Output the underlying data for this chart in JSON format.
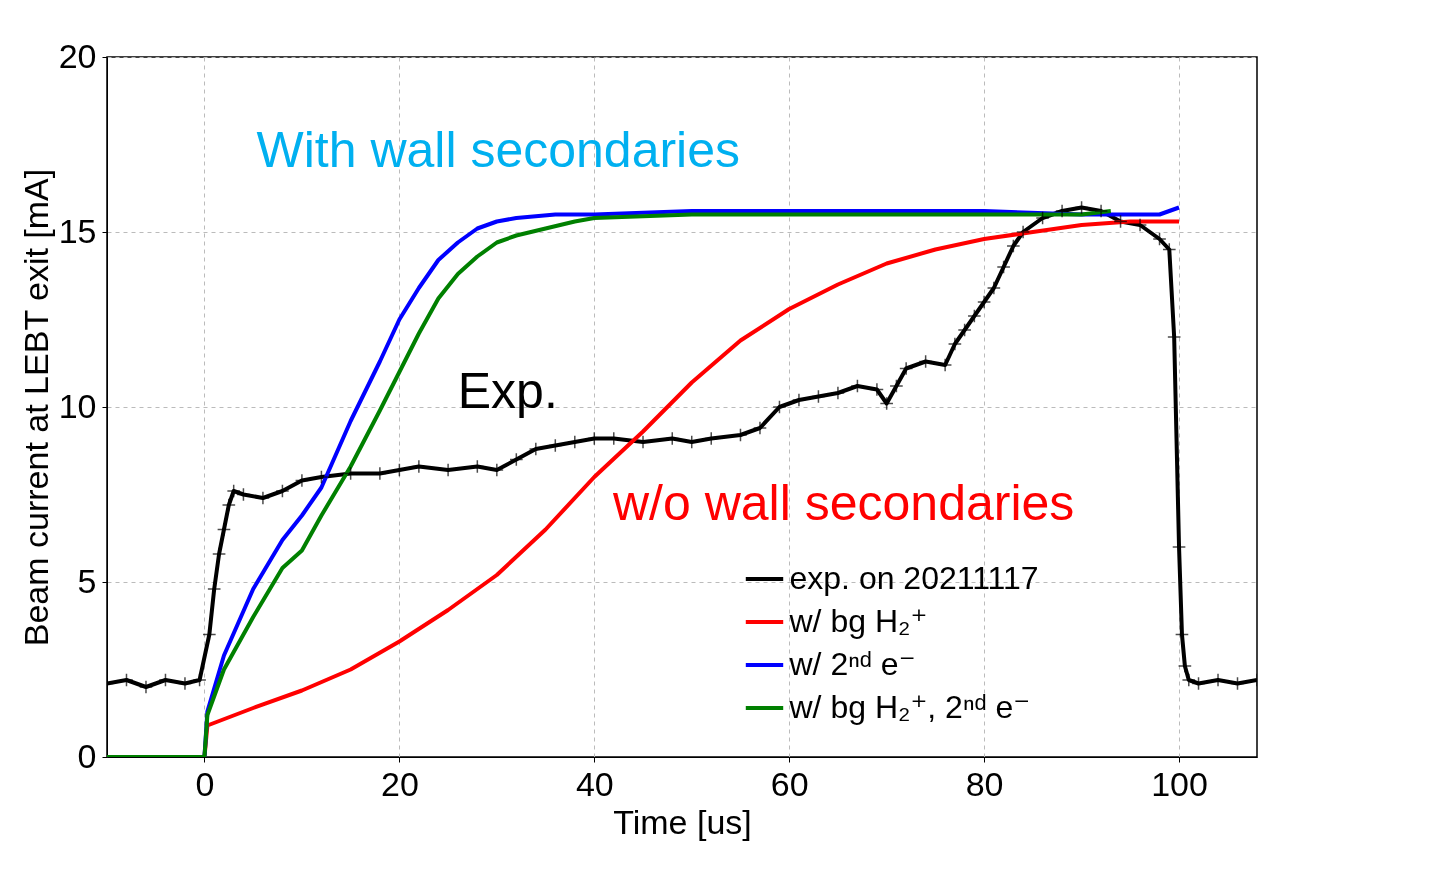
{
  "chart_data": {
    "type": "line",
    "xlabel": "Time [us]",
    "ylabel": "Beam current at LEBT exit [mA]",
    "xlim": [
      -10,
      108
    ],
    "ylim": [
      0,
      20
    ],
    "xticks": [
      0,
      20,
      40,
      60,
      80,
      100
    ],
    "yticks": [
      0,
      5,
      10,
      15,
      20
    ],
    "grid": true,
    "legend": "bottom right",
    "line_style": "solid",
    "annotations": [
      "With wall secondaries",
      "Exp.",
      "w/o wall secondaries"
    ],
    "series": [
      {
        "name": "exp. on 20211117",
        "color": "#000000",
        "marker": "cross",
        "x": [
          -10,
          -8,
          -6,
          -4,
          -2,
          -0.5,
          0.5,
          1,
          1.5,
          2,
          2.5,
          3,
          4,
          6,
          8,
          10,
          12,
          15,
          18,
          20,
          22,
          25,
          28,
          30,
          32,
          34,
          36,
          38,
          40,
          42,
          45,
          48,
          50,
          52,
          55,
          57,
          59,
          61,
          63,
          65,
          67,
          69,
          70,
          71,
          72,
          74,
          76,
          77,
          78,
          79,
          80,
          81,
          82,
          83,
          84,
          86,
          88,
          90,
          92,
          94,
          96,
          98,
          99,
          99.5,
          100,
          100.3,
          100.6,
          101,
          102,
          104,
          106,
          108
        ],
        "values": [
          2.1,
          2.2,
          2.0,
          2.2,
          2.1,
          2.2,
          3.5,
          4.8,
          5.8,
          6.5,
          7.2,
          7.6,
          7.5,
          7.4,
          7.6,
          7.9,
          8.0,
          8.1,
          8.1,
          8.2,
          8.3,
          8.2,
          8.3,
          8.2,
          8.5,
          8.8,
          8.9,
          9.0,
          9.1,
          9.1,
          9.0,
          9.1,
          9.0,
          9.1,
          9.2,
          9.4,
          10.0,
          10.2,
          10.3,
          10.4,
          10.6,
          10.5,
          10.1,
          10.6,
          11.1,
          11.3,
          11.2,
          11.8,
          12.2,
          12.6,
          13.0,
          13.4,
          14.0,
          14.6,
          15.0,
          15.4,
          15.6,
          15.7,
          15.6,
          15.3,
          15.2,
          14.8,
          14.5,
          12.0,
          6.0,
          3.5,
          2.6,
          2.2,
          2.1,
          2.2,
          2.1,
          2.2
        ]
      },
      {
        "name": "w/ bg H₂⁺",
        "color": "#ff0000",
        "x": [
          -10,
          0,
          0.3,
          5,
          10,
          15,
          20,
          25,
          30,
          35,
          40,
          45,
          50,
          55,
          60,
          65,
          70,
          75,
          80,
          85,
          90,
          95,
          100
        ],
        "values": [
          0,
          0,
          0.9,
          1.4,
          1.9,
          2.5,
          3.3,
          4.2,
          5.2,
          6.5,
          8.0,
          9.3,
          10.7,
          11.9,
          12.8,
          13.5,
          14.1,
          14.5,
          14.8,
          15.0,
          15.2,
          15.3,
          15.3
        ]
      },
      {
        "name": "w/ 2ⁿᵈ e⁻",
        "color": "#0000ff",
        "x": [
          -10,
          0,
          0.3,
          2,
          5,
          8,
          10,
          12,
          15,
          18,
          20,
          22,
          24,
          26,
          28,
          30,
          32,
          36,
          40,
          50,
          60,
          70,
          80,
          90,
          98,
          100
        ],
        "values": [
          0,
          0,
          1.3,
          2.9,
          4.8,
          6.2,
          6.9,
          7.7,
          9.6,
          11.3,
          12.5,
          13.4,
          14.2,
          14.7,
          15.1,
          15.3,
          15.4,
          15.5,
          15.5,
          15.6,
          15.6,
          15.6,
          15.6,
          15.5,
          15.5,
          15.7
        ]
      },
      {
        "name": "w/ bg H₂⁺, 2ⁿᵈ e⁻",
        "color": "#008000",
        "x": [
          -10,
          0,
          0.3,
          2,
          5,
          8,
          10,
          12,
          15,
          18,
          20,
          22,
          24,
          26,
          28,
          30,
          32,
          35,
          38,
          40,
          50,
          60,
          70,
          80,
          90,
          93
        ],
        "values": [
          0,
          0,
          1.2,
          2.5,
          4.0,
          5.4,
          5.9,
          6.9,
          8.3,
          9.9,
          11.0,
          12.1,
          13.1,
          13.8,
          14.3,
          14.7,
          14.9,
          15.1,
          15.3,
          15.4,
          15.5,
          15.5,
          15.5,
          15.5,
          15.5,
          15.6
        ]
      }
    ]
  }
}
